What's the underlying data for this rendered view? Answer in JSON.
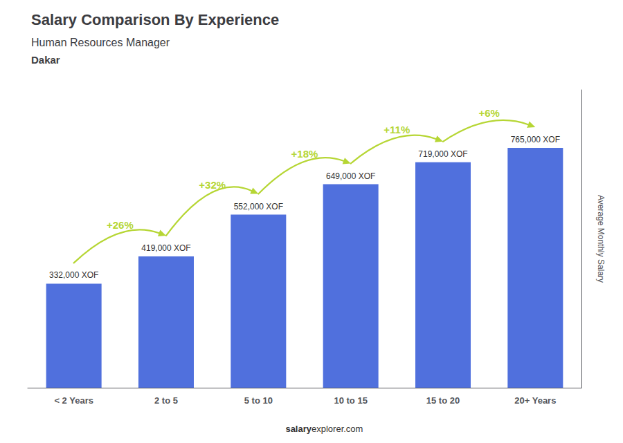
{
  "chart_data": {
    "type": "bar",
    "title": "Salary Comparison By Experience",
    "subtitle": [
      "Human Resources Manager",
      "Dakar"
    ],
    "y_label": "Average Monthly Salary",
    "categories": [
      "< 2 Years",
      "2 to 5",
      "5 to 10",
      "10 to 15",
      "15 to 20",
      "20+ Years"
    ],
    "values": [
      332000,
      419000,
      552000,
      649000,
      719000,
      765000
    ],
    "value_labels": [
      "332,000 XOF",
      "419,000 XOF",
      "552,000 XOF",
      "649,000 XOF",
      "719,000 XOF",
      "765,000 XOF"
    ],
    "data_labels": true,
    "ylim": [
      0,
      950000
    ],
    "tick_labels": "x",
    "grid": false,
    "annotations": [
      {
        "text": "+26%",
        "from": "< 2 Years",
        "to": "2 to 5"
      },
      {
        "text": "+32%",
        "from": "2 to 5",
        "to": "5 to 10"
      },
      {
        "text": "+18%",
        "from": "5 to 10",
        "to": "10 to 15"
      },
      {
        "text": "+11%",
        "from": "10 to 15",
        "to": "15 to 20"
      },
      {
        "text": "+6%",
        "from": "15 to 20",
        "to": "20+ Years"
      },
      {
        "text": "salary"
      },
      {
        "text": "explorer.com"
      }
    ]
  }
}
